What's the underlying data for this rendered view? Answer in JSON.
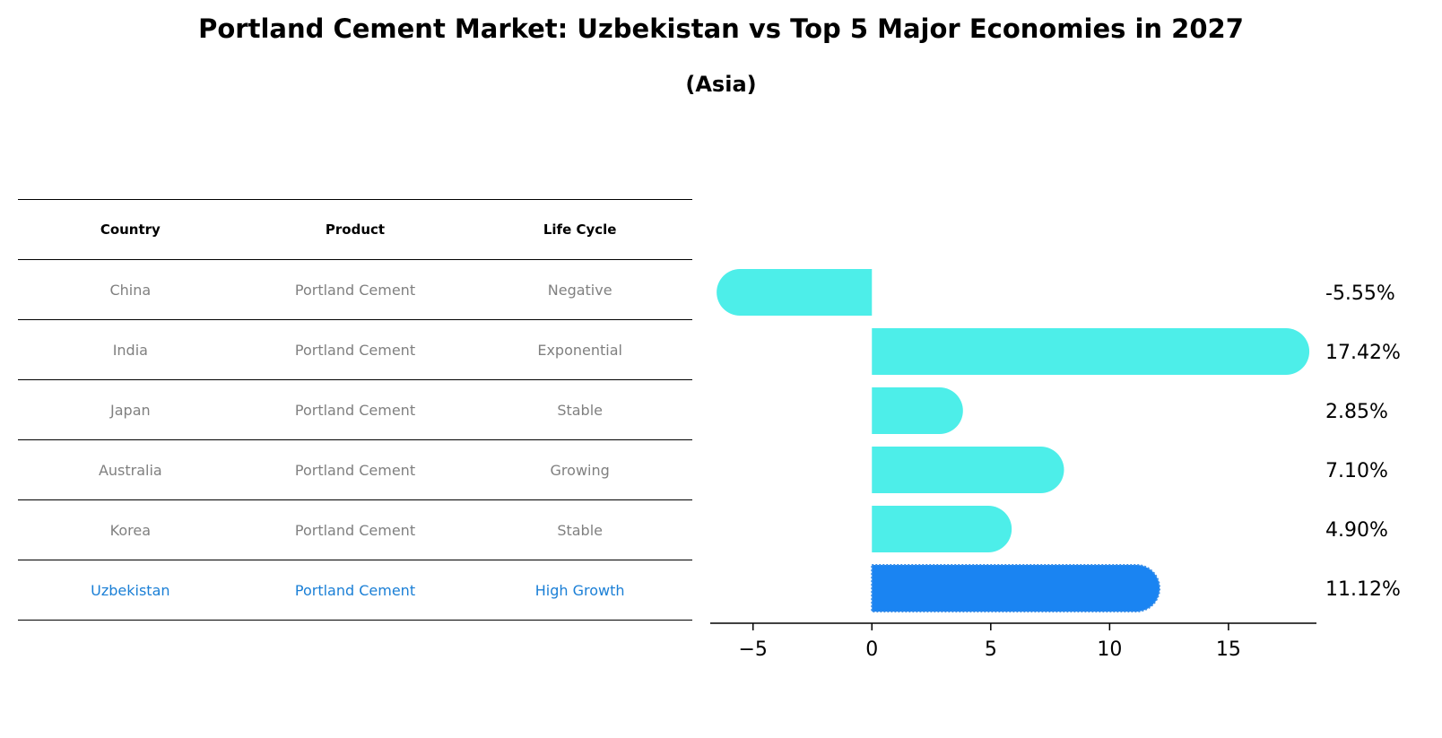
{
  "title": "Portland Cement Market: Uzbekistan vs Top 5 Major Economies in 2027",
  "subtitle": "(Asia)",
  "table": {
    "headers": [
      "Country",
      "Product",
      "Life Cycle"
    ],
    "rows": [
      {
        "country": "China",
        "product": "Portland Cement",
        "life_cycle": "Negative",
        "highlight": false
      },
      {
        "country": "India",
        "product": "Portland Cement",
        "life_cycle": "Exponential",
        "highlight": false
      },
      {
        "country": "Japan",
        "product": "Portland Cement",
        "life_cycle": "Stable",
        "highlight": false
      },
      {
        "country": "Australia",
        "product": "Portland Cement",
        "life_cycle": "Growing",
        "highlight": false
      },
      {
        "country": "Korea",
        "product": "Portland Cement",
        "life_cycle": "Stable",
        "highlight": false
      },
      {
        "country": "Uzbekistan",
        "product": "Portland Cement",
        "life_cycle": "High Growth",
        "highlight": true
      }
    ]
  },
  "chart_data": {
    "type": "bar",
    "orientation": "horizontal",
    "categories": [
      "China",
      "India",
      "Japan",
      "Australia",
      "Korea",
      "Uzbekistan"
    ],
    "values": [
      -5.55,
      17.42,
      2.85,
      7.1,
      4.9,
      11.12
    ],
    "value_labels": [
      "-5.55%",
      "17.42%",
      "2.85%",
      "7.10%",
      "4.90%",
      "11.12%"
    ],
    "xticks": [
      -5,
      0,
      5,
      10,
      15
    ],
    "xlim": [
      -6.8,
      18.7
    ],
    "grid": false,
    "highlight_category": "Uzbekistan",
    "colors": {
      "bar": "#4deee9",
      "highlight_bar": "#1a84f2",
      "highlight_text": "#1a7fd6",
      "muted_text": "#808080"
    }
  }
}
